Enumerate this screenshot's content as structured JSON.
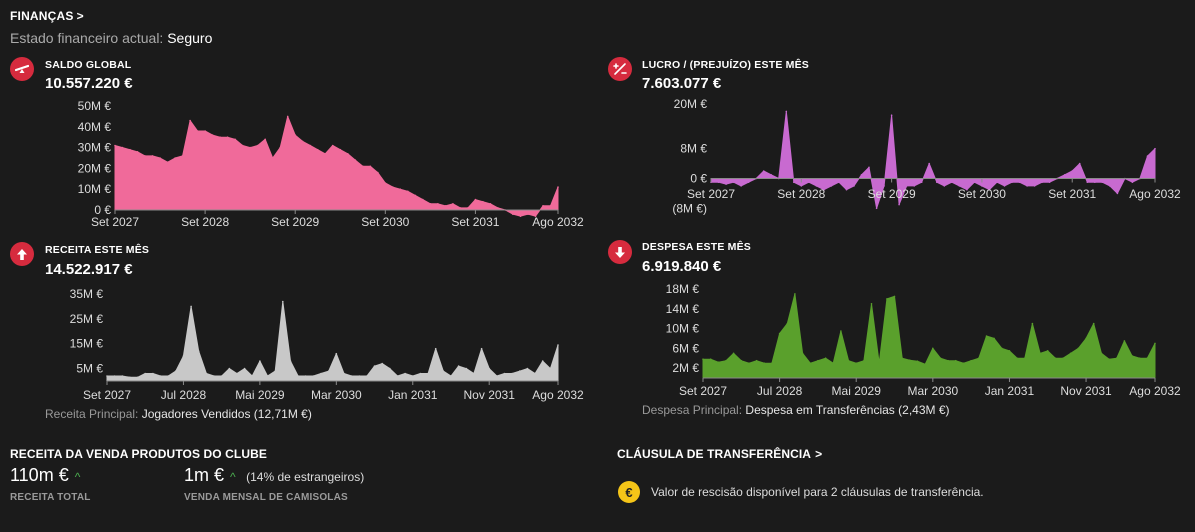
{
  "header": {
    "title": "FINANÇAS",
    "status_label": "Estado financeiro actual:",
    "status_value": "Seguro"
  },
  "panels": {
    "saldo": {
      "title": "SALDO GLOBAL",
      "value": "10.557.220 €",
      "icon": "seesaw-icon"
    },
    "lucro": {
      "title": "LUCRO / (PREJUÍZO) ESTE MÊS",
      "value": "7.603.077 €",
      "icon": "plus-minus-icon"
    },
    "receita": {
      "title": "RECEITA ESTE MÊS",
      "value": "14.522.917 €",
      "icon": "arrow-up-icon",
      "sub_label": "Receita Principal:",
      "sub_value": "Jogadores Vendidos (12,71M €)"
    },
    "despesa": {
      "title": "DESPESA ESTE MÊS",
      "value": "6.919.840 €",
      "icon": "arrow-down-icon",
      "sub_label": "Despesa Principal:",
      "sub_value": "Despesa em Transferências (2,43M €)"
    }
  },
  "merch": {
    "title": "RECEITA DA VENDA PRODUTOS DO CLUBE",
    "total_value": "110m €",
    "total_label": "RECEITA TOTAL",
    "monthly_value": "1m €",
    "monthly_note": "(14% de estrangeiros)",
    "monthly_label": "VENDA MENSAL DE CAMISOLAS"
  },
  "clause": {
    "title": "CLÁUSULA DE TRANSFERÊNCIA",
    "coin": "€",
    "text": "Valor de rescisão disponível para 2 cláusulas de transferência."
  },
  "chart_data": [
    {
      "id": "saldo",
      "type": "area",
      "color": "#f06a9a",
      "ylim": [
        0,
        50
      ],
      "yticks": [
        0,
        10,
        20,
        30,
        40,
        50
      ],
      "ytick_labels": [
        "0 €",
        "10M €",
        "20M €",
        "30M €",
        "40M €",
        "50M €"
      ],
      "xtick_labels": [
        "Set 2027",
        "Set 2028",
        "Set 2029",
        "Set 2030",
        "Set 2031",
        "Ago 2032"
      ],
      "xtick_index": [
        0,
        12,
        24,
        36,
        48,
        59
      ],
      "values": [
        31,
        30,
        29,
        28,
        26,
        26,
        25,
        23,
        25,
        26,
        43,
        38,
        38,
        36,
        35,
        35,
        34,
        31,
        30,
        31,
        34,
        25,
        30,
        45,
        36,
        33,
        31,
        29,
        27,
        31,
        29,
        27,
        24,
        21,
        21,
        18,
        13,
        11,
        10,
        9,
        7,
        5,
        3,
        3,
        2,
        3,
        1,
        1,
        5,
        4,
        3,
        1,
        0,
        -2,
        -3,
        -2,
        -3,
        2,
        2,
        11
      ]
    },
    {
      "id": "lucro",
      "type": "area",
      "color": "#c86ad0",
      "ylim": [
        -9,
        20
      ],
      "yticks": [
        -8,
        0,
        8,
        20
      ],
      "ytick_labels": [
        "(8M €)",
        "0 €",
        "8M €",
        "20M €"
      ],
      "xtick_labels": [
        "Set 2027",
        "Set 2028",
        "Set 2029",
        "Set 2030",
        "Set 2031",
        "Ago 2032"
      ],
      "xtick_index": [
        0,
        12,
        24,
        36,
        48,
        59
      ],
      "values": [
        -1,
        -1,
        -1.5,
        -1,
        -2,
        -1,
        0,
        2,
        1,
        0,
        18,
        -1,
        -2,
        -1,
        -2,
        -3,
        -2,
        -1,
        -3,
        -2,
        1,
        3,
        -8,
        -2,
        17,
        -7,
        -2,
        -2,
        -1,
        4,
        -1,
        -2,
        -1,
        -2,
        -3,
        -1,
        -2,
        -3,
        -1,
        -2,
        -1,
        -1,
        -2,
        -2,
        -1,
        -1,
        0,
        1,
        2,
        4,
        -1,
        -1,
        -1,
        -2,
        -4,
        0,
        -1,
        0,
        6,
        8
      ]
    },
    {
      "id": "receita",
      "type": "area",
      "color": "#c8c8c8",
      "ylim": [
        0,
        35
      ],
      "yticks": [
        5,
        15,
        25,
        35
      ],
      "ytick_labels": [
        "5M €",
        "15M €",
        "25M €",
        "35M €"
      ],
      "xtick_labels": [
        "Set 2027",
        "Jul 2028",
        "Mai 2029",
        "Mar 2030",
        "Jan 2031",
        "Nov 2031",
        "Ago 2032"
      ],
      "xtick_index": [
        0,
        10,
        20,
        30,
        40,
        50,
        59
      ],
      "values": [
        2,
        2,
        2,
        1.5,
        1.5,
        3,
        3,
        2,
        2,
        4,
        10,
        30,
        12,
        3,
        2,
        2,
        5,
        3,
        5,
        2,
        8,
        2,
        4,
        32,
        8,
        2,
        2,
        2,
        3,
        4,
        11,
        3,
        2,
        2,
        2,
        6,
        7,
        5,
        2,
        3,
        2,
        3,
        3,
        13,
        4,
        2,
        6,
        5,
        3,
        13,
        5,
        2,
        3,
        3,
        4,
        5,
        3,
        8,
        5,
        14.5
      ]
    },
    {
      "id": "despesa",
      "type": "area",
      "color": "#5aa02c",
      "ylim": [
        0,
        18
      ],
      "yticks": [
        2,
        6,
        10,
        14,
        18
      ],
      "ytick_labels": [
        "2M €",
        "6M €",
        "10M €",
        "14M €",
        "18M €"
      ],
      "xtick_labels": [
        "Set 2027",
        "Jul 2028",
        "Mai 2029",
        "Mar 2030",
        "Jan 2031",
        "Nov 2031",
        "Ago 2032"
      ],
      "xtick_index": [
        0,
        10,
        20,
        30,
        40,
        50,
        59
      ],
      "values": [
        3.8,
        3.8,
        3.2,
        3.5,
        5,
        3.5,
        3,
        3.5,
        3,
        3,
        9,
        11,
        17,
        5,
        3,
        3.5,
        4,
        3,
        9.5,
        3.5,
        3,
        3.5,
        15,
        3,
        16,
        16.5,
        4,
        3.6,
        3.4,
        2.8,
        6,
        4,
        3.5,
        3.5,
        3,
        3.5,
        4,
        8.5,
        8,
        6,
        5.5,
        4,
        4,
        11,
        5,
        5.5,
        4,
        4,
        5,
        6,
        8,
        11,
        5,
        3.8,
        4,
        7.5,
        4.5,
        4,
        4,
        7
      ]
    }
  ]
}
